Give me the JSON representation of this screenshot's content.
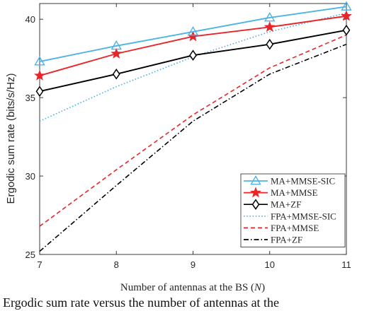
{
  "caption": "Ergodic sum rate versus the number of antennas at the",
  "chart_data": {
    "type": "line",
    "title": "",
    "xlabel": "Number of antennas at the BS (N)",
    "ylabel": "Ergodic sum rate (bits/s/Hz)",
    "x": [
      7,
      8,
      9,
      10,
      11
    ],
    "xlim": [
      7,
      11
    ],
    "ylim": [
      25,
      41
    ],
    "xticks": [
      "7",
      "8",
      "9",
      "10",
      "11"
    ],
    "yticks": [
      "25",
      "30",
      "35",
      "40"
    ],
    "grid": false,
    "legend_position": "bottom-right",
    "series": [
      {
        "name": "MA+MMSE-SIC",
        "values": [
          37.3,
          38.3,
          39.2,
          40.1,
          40.8
        ],
        "color": "#4db3e6",
        "dash": "solid",
        "marker": "triangle"
      },
      {
        "name": "MA+MMSE",
        "values": [
          36.4,
          37.8,
          38.9,
          39.5,
          40.2
        ],
        "color": "#e8262a",
        "dash": "solid",
        "marker": "star"
      },
      {
        "name": "MA+ZF",
        "values": [
          35.4,
          36.5,
          37.7,
          38.4,
          39.3
        ],
        "color": "#000000",
        "dash": "solid",
        "marker": "diamond"
      },
      {
        "name": "FPA+MMSE-SIC",
        "values": [
          33.5,
          35.7,
          37.6,
          39.2,
          40.4
        ],
        "color": "#4db3e6",
        "dash": "dotted",
        "marker": "none"
      },
      {
        "name": "FPA+MMSE",
        "values": [
          26.8,
          30.4,
          33.9,
          36.9,
          39.0
        ],
        "color": "#e8262a",
        "dash": "dashed",
        "marker": "none"
      },
      {
        "name": "FPA+ZF",
        "values": [
          25.2,
          29.4,
          33.5,
          36.5,
          38.4
        ],
        "color": "#000000",
        "dash": "dashdot",
        "marker": "none"
      }
    ]
  }
}
